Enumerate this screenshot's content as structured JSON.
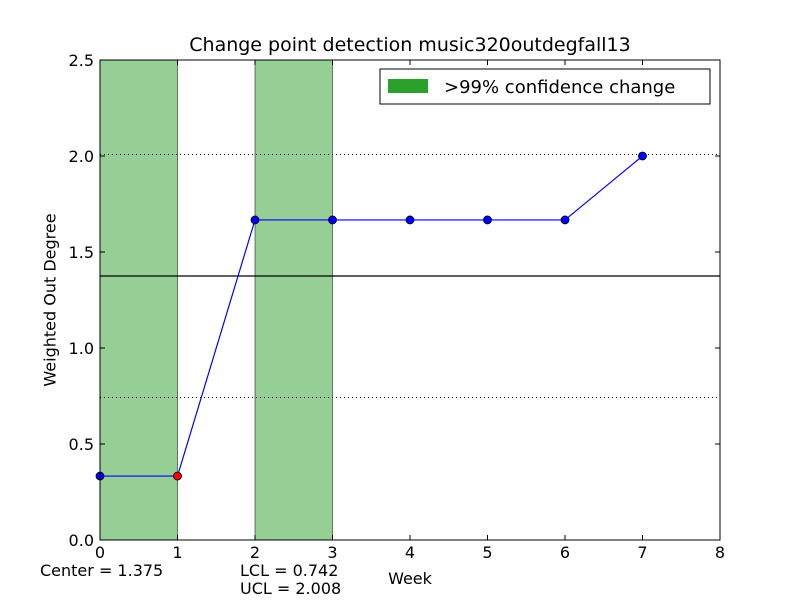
{
  "chart_data": {
    "type": "line",
    "title": "Change point detection music320outdegfall13",
    "xlabel": "Week",
    "ylabel": "Weighted Out Degree",
    "xlim": [
      0,
      8
    ],
    "ylim": [
      0,
      2.5
    ],
    "xticks": [
      0,
      1,
      2,
      3,
      4,
      5,
      6,
      7,
      8
    ],
    "yticks": [
      0.0,
      0.5,
      1.0,
      1.5,
      2.0,
      2.5
    ],
    "grid": false,
    "series": [
      {
        "x": [
          0,
          1,
          2,
          3,
          4,
          5,
          6,
          7
        ],
        "y": [
          0.333,
          0.333,
          1.667,
          1.667,
          1.667,
          1.667,
          1.667,
          2.0
        ],
        "color": "#0000ff",
        "highlight_points": [
          1
        ],
        "highlight_color": "#ff0000"
      }
    ],
    "center_line": 1.375,
    "lcl_line": 0.742,
    "ucl_line": 2.008,
    "change_regions": [
      [
        0,
        1
      ],
      [
        2,
        3
      ]
    ],
    "region_color": "#2ca02c",
    "legend": {
      "label": ">99% confidence change",
      "placement": "upper-right"
    },
    "annotations": {
      "center": "Center = 1.375",
      "lcl": "LCL = 0.742",
      "ucl": "UCL = 2.008"
    }
  }
}
